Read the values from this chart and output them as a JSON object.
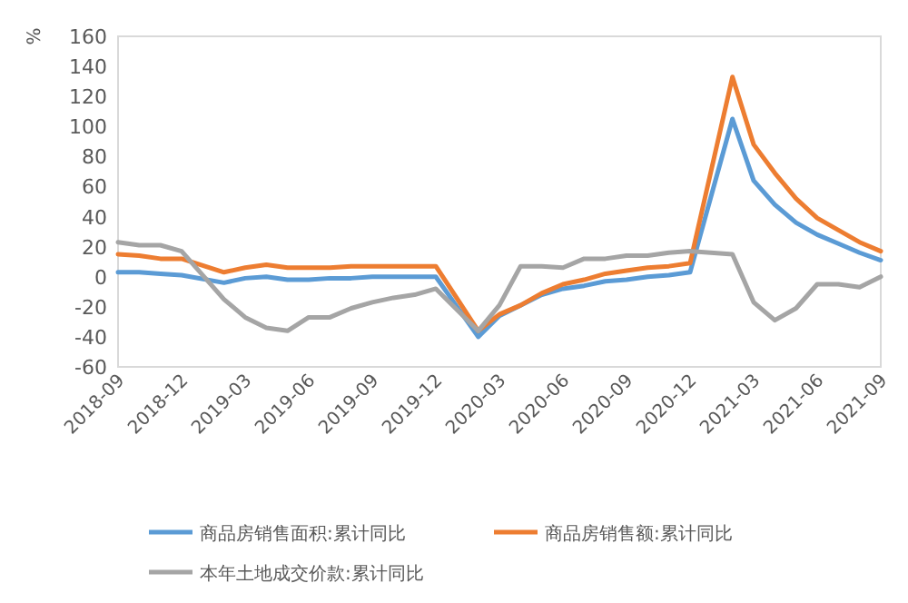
{
  "chart_data": {
    "type": "line",
    "ylabel": "%",
    "legend": "bottom",
    "grid": false,
    "line_style": "solid",
    "marker": "none",
    "x": [
      "2018-09",
      "2018-10",
      "2018-11",
      "2018-12",
      "2019-02",
      "2019-03",
      "2019-04",
      "2019-05",
      "2019-06",
      "2019-07",
      "2019-08",
      "2019-09",
      "2019-10",
      "2019-11",
      "2019-12",
      "2020-02",
      "2020-03",
      "2020-04",
      "2020-05",
      "2020-06",
      "2020-07",
      "2020-08",
      "2020-09",
      "2020-10",
      "2020-11",
      "2020-12",
      "2021-02",
      "2021-03",
      "2021-04",
      "2021-05",
      "2021-06",
      "2021-07",
      "2021-08",
      "2021-09"
    ],
    "xlim": [
      "2018-09",
      "2021-09"
    ],
    "xticks": [
      "2018-09",
      "2018-12",
      "2019-03",
      "2019-06",
      "2019-09",
      "2019-12",
      "2020-03",
      "2020-06",
      "2020-09",
      "2020-12",
      "2021-03",
      "2021-06",
      "2021-09"
    ],
    "ylim": [
      -60,
      160
    ],
    "yticks": [
      -60,
      -40,
      -20,
      0,
      20,
      40,
      60,
      80,
      100,
      120,
      140,
      160
    ],
    "series": [
      {
        "name": "商品房销售面积:累计同比",
        "color": "#5b9bd5",
        "values": [
          3,
          3,
          2,
          1,
          -4,
          -1,
          0,
          -2,
          -2,
          -1,
          -1,
          0,
          0,
          0,
          0,
          -40,
          -26,
          -19,
          -12,
          -8,
          -6,
          -3,
          -2,
          0,
          1,
          3,
          105,
          64,
          48,
          36,
          28,
          22,
          16,
          11
        ]
      },
      {
        "name": "商品房销售额:累计同比",
        "color": "#ed7d31",
        "values": [
          15,
          14,
          12,
          12,
          3,
          6,
          8,
          6,
          6,
          6,
          7,
          7,
          7,
          7,
          7,
          -36,
          -25,
          -19,
          -11,
          -5,
          -2,
          2,
          4,
          6,
          7,
          9,
          133,
          88,
          69,
          52,
          39,
          31,
          23,
          17
        ]
      },
      {
        "name": "本年土地成交价款:累计同比",
        "color": "#a5a5a5",
        "values": [
          23,
          21,
          21,
          17,
          -15,
          -27,
          -34,
          -36,
          -27,
          -27,
          -21,
          -17,
          -14,
          -12,
          -8,
          -36,
          -19,
          7,
          7,
          6,
          12,
          12,
          14,
          14,
          16,
          17,
          15,
          -17,
          -29,
          -21,
          -5,
          -5,
          -7,
          0
        ]
      }
    ]
  }
}
